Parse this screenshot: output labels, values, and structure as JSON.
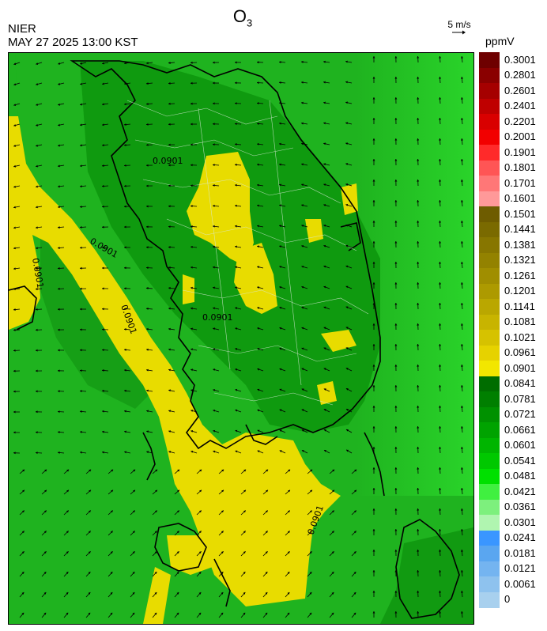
{
  "header": {
    "organization": "NIER",
    "timestamp": "MAY 27 2025 13:00 KST",
    "title_main": "O",
    "title_sub": "3",
    "wind_reference": "5 m/s",
    "unit": "ppmV"
  },
  "map": {
    "contour_labels": [
      "0.0901",
      "0.0901",
      "0.0901",
      "0.0901",
      "0.0901",
      "0.0901"
    ]
  },
  "legend": {
    "labels": [
      "0.3001",
      "0.2801",
      "0.2601",
      "0.2401",
      "0.2201",
      "0.2001",
      "0.1901",
      "0.1801",
      "0.1701",
      "0.1601",
      "0.1501",
      "0.1441",
      "0.1381",
      "0.1321",
      "0.1261",
      "0.1201",
      "0.1141",
      "0.1081",
      "0.1021",
      "0.0961",
      "0.0901",
      "0.0841",
      "0.0781",
      "0.0721",
      "0.0661",
      "0.0601",
      "0.0541",
      "0.0481",
      "0.0421",
      "0.0361",
      "0.0301",
      "0.0241",
      "0.0181",
      "0.0121",
      "0.0061",
      "0"
    ],
    "colors": [
      "#6e0000",
      "#8a0000",
      "#a50000",
      "#bf0000",
      "#d90000",
      "#f20000",
      "#ff2a2a",
      "#ff5555",
      "#ff7777",
      "#ff9999",
      "#6e5c00",
      "#7a6a00",
      "#877600",
      "#938200",
      "#a08e00",
      "#ad9a00",
      "#baa700",
      "#c8b400",
      "#d6c200",
      "#e6d200",
      "#f2e600",
      "#006d00",
      "#007f00",
      "#009100",
      "#00a300",
      "#00b500",
      "#00c800",
      "#00e000",
      "#40f040",
      "#7df07d",
      "#b0f5b0",
      "#3a96ff",
      "#5aa6f0",
      "#74b4f0",
      "#8ec2ee",
      "#a8d0ee"
    ]
  }
}
